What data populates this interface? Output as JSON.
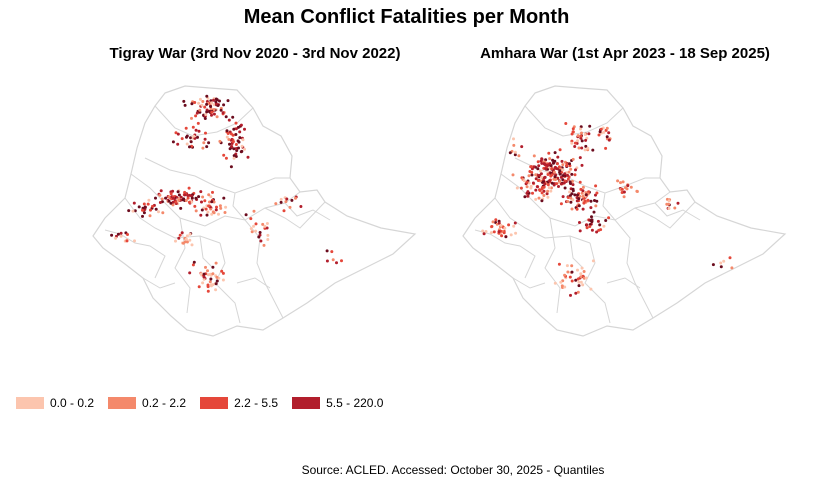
{
  "title": "Mean Conflict Fatalities per Month",
  "panels": [
    {
      "title": "Tigray War (3rd Nov 2020 - 3rd Nov 2022)"
    },
    {
      "title": "Amhara War (1st Apr 2023 - 18 Sep 2025)"
    }
  ],
  "legend": {
    "items": [
      {
        "label": "0.0 - 0.2",
        "color": "#fcc5ae"
      },
      {
        "label": "0.2 - 2.2",
        "color": "#f4896b"
      },
      {
        "label": "2.2 - 5.5",
        "color": "#e5473a"
      },
      {
        "label": "5.5 - 220.0",
        "color": "#b21e2c"
      }
    ]
  },
  "point_colors": [
    "#fcc5ae",
    "#f4896b",
    "#e5473a",
    "#b21e2c",
    "#6b0c1e"
  ],
  "border_color": "#d6d6d6",
  "source": "Source: ACLED. Accessed: October 30, 2025 - Quantiles"
}
